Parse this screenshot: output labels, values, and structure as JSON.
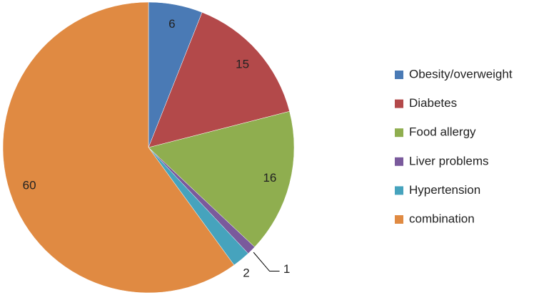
{
  "chart_data": {
    "type": "pie",
    "categories": [
      "Obesity/overweight",
      "Diabetes",
      "Food allergy",
      "Liver problems",
      "Hypertension",
      "combination"
    ],
    "values": [
      6,
      15,
      16,
      1,
      2,
      60
    ],
    "colors": [
      "#4a7ab5",
      "#b3494a",
      "#8fae4f",
      "#7a5a9c",
      "#46a3bd",
      "#e08a42"
    ],
    "legend": "right"
  }
}
